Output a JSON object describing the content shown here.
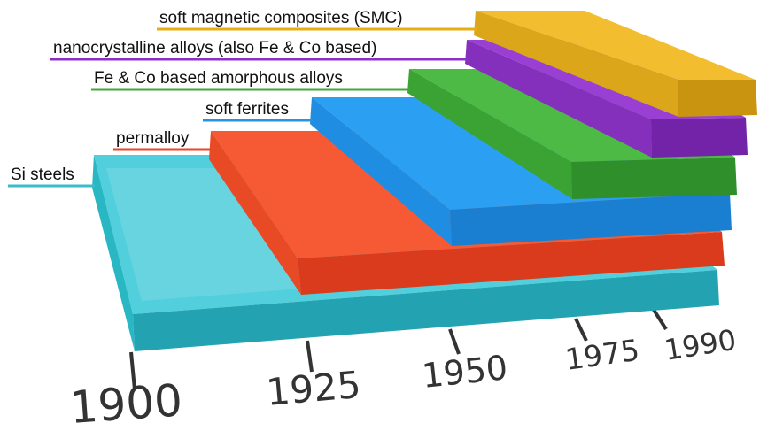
{
  "timeline": {
    "years": [
      "1900",
      "1925",
      "1950",
      "1975",
      "1990"
    ]
  },
  "materials": [
    {
      "name": "Si steels",
      "introduced": "1900",
      "color": "#3bbccb"
    },
    {
      "name": "permalloy",
      "introduced": "1925",
      "color": "#ee4624"
    },
    {
      "name": "soft ferrites",
      "introduced": "1950",
      "color": "#2394e8"
    },
    {
      "name": "Fe & Co based amorphous alloys",
      "introduced": "1975",
      "color": "#3fa83a"
    },
    {
      "name": "nanocrystalline alloys (also Fe & Co based)",
      "introduced": "1990",
      "color": "#8e2fc8"
    },
    {
      "name": "soft magnetic composites (SMC)",
      "introduced": "1990",
      "color": "#e9ad14"
    }
  ]
}
